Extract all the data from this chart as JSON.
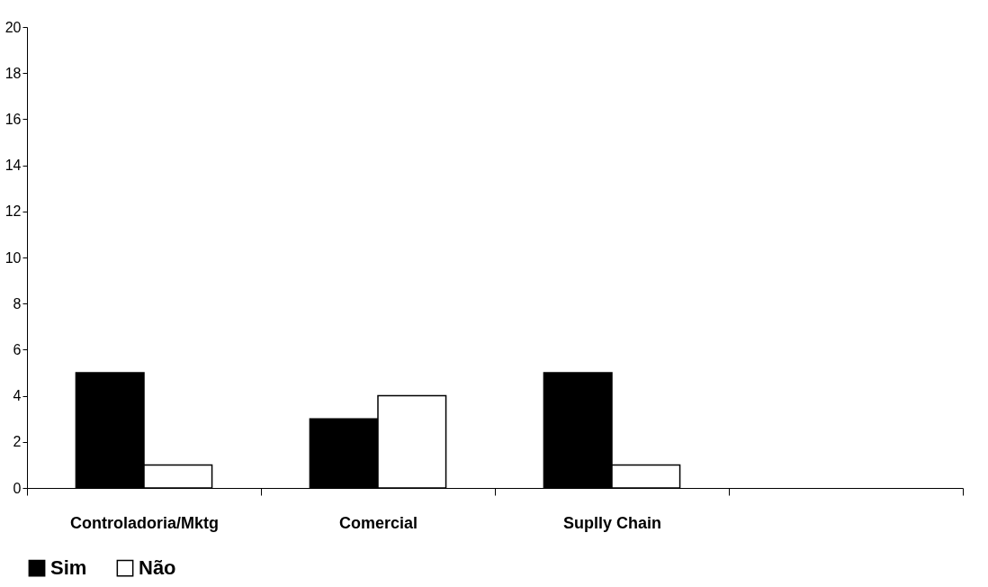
{
  "chart_data": {
    "type": "bar",
    "categories": [
      "Controladoria/Mktg",
      "Comercial",
      "Suplly Chain",
      null
    ],
    "series": [
      {
        "name": "Sim",
        "color": "#000000",
        "values": [
          5,
          3,
          5,
          null
        ]
      },
      {
        "name": "Não",
        "color": "#ffffff",
        "values": [
          1,
          4,
          1,
          null
        ]
      }
    ],
    "ylim": [
      0,
      20
    ],
    "yticks": [
      0,
      2,
      4,
      6,
      8,
      10,
      12,
      14,
      16,
      18,
      20
    ],
    "grid": false,
    "legend": "bottom"
  }
}
